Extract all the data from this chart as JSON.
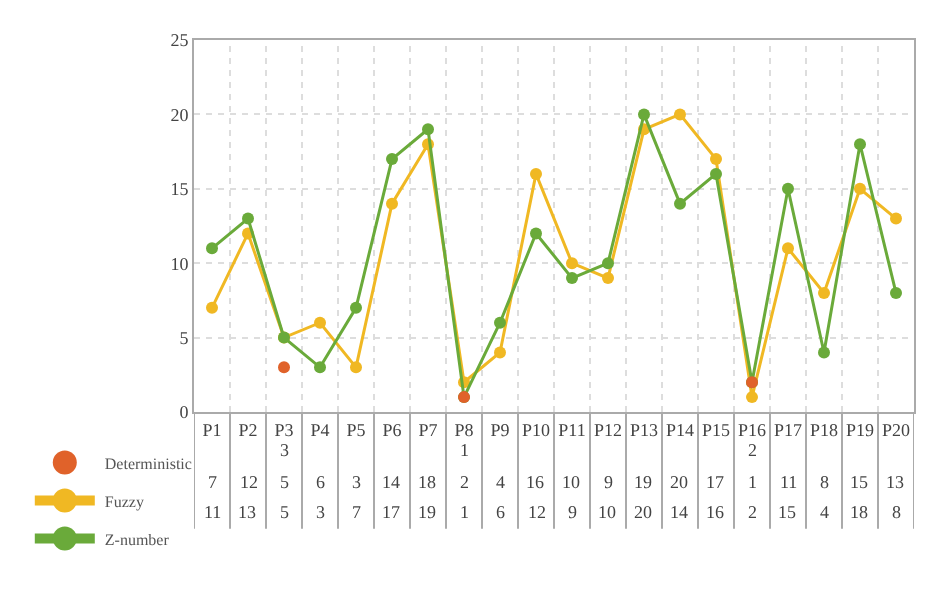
{
  "chart_data": {
    "type": "line",
    "categories": [
      "P1",
      "P2",
      "P3",
      "P4",
      "P5",
      "P6",
      "P7",
      "P8",
      "P9",
      "P10",
      "P11",
      "P12",
      "P13",
      "P14",
      "P15",
      "P16",
      "P17",
      "P18",
      "P19",
      "P20"
    ],
    "series": [
      {
        "name": "Deterministic",
        "type": "scatter",
        "color": "#e0622a",
        "values": [
          null,
          null,
          3,
          null,
          null,
          null,
          null,
          1,
          null,
          null,
          null,
          null,
          null,
          null,
          null,
          2,
          null,
          null,
          null,
          null
        ]
      },
      {
        "name": "Fuzzy",
        "color": "#f0b823",
        "values": [
          7,
          12,
          5,
          6,
          3,
          14,
          18,
          2,
          4,
          16,
          10,
          9,
          19,
          20,
          17,
          1,
          11,
          8,
          15,
          13
        ]
      },
      {
        "name": "Z-number",
        "color": "#6aaa3a",
        "values": [
          11,
          13,
          5,
          3,
          7,
          17,
          19,
          1,
          6,
          12,
          9,
          10,
          20,
          14,
          16,
          2,
          15,
          4,
          18,
          8
        ]
      }
    ],
    "ylim": [
      0,
      25
    ],
    "yticks": [
      0,
      5,
      10,
      15,
      20,
      25
    ],
    "grid": true,
    "legend": "bottom left",
    "marker": "circle",
    "line_style": "solid",
    "data_labels": true
  }
}
